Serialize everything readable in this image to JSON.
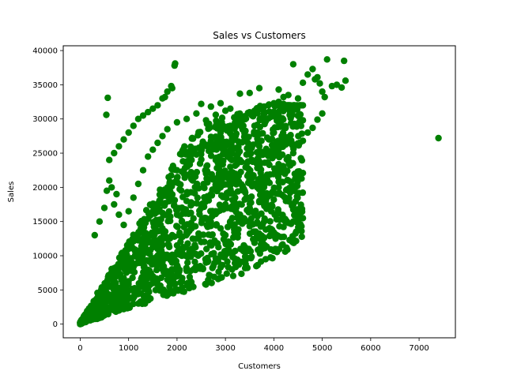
{
  "chart_data": {
    "type": "scatter",
    "title": "Sales vs Customers",
    "xlabel": "Customers",
    "ylabel": "Sales",
    "xlim": [
      -350,
      7750
    ],
    "ylim": [
      -2000,
      40700
    ],
    "xticks": [
      0,
      1000,
      2000,
      3000,
      4000,
      5000,
      6000,
      7000
    ],
    "yticks": [
      0,
      5000,
      10000,
      15000,
      20000,
      25000,
      30000,
      35000,
      40000
    ],
    "grid": false,
    "legend": "none",
    "marker_color": "#008000",
    "series": [
      {
        "points": [
          [
            0,
            0
          ],
          [
            20,
            150
          ],
          [
            50,
            400
          ],
          [
            80,
            700
          ],
          [
            120,
            1100
          ],
          [
            150,
            1500
          ],
          [
            200,
            2000
          ],
          [
            250,
            2600
          ],
          [
            300,
            3200
          ],
          [
            350,
            3800
          ],
          [
            400,
            4300
          ],
          [
            450,
            5000
          ],
          [
            500,
            5500
          ],
          [
            550,
            6000
          ],
          [
            600,
            6600
          ],
          [
            650,
            7200
          ],
          [
            700,
            7700
          ],
          [
            750,
            8200
          ],
          [
            800,
            8800
          ],
          [
            850,
            9300
          ],
          [
            900,
            9800
          ],
          [
            950,
            10400
          ],
          [
            1000,
            11000
          ],
          [
            1050,
            11500
          ],
          [
            1100,
            12100
          ],
          [
            1150,
            12600
          ],
          [
            1200,
            13200
          ],
          [
            1250,
            13700
          ],
          [
            1300,
            14300
          ],
          [
            1350,
            14800
          ],
          [
            1400,
            15400
          ],
          [
            1450,
            15900
          ],
          [
            1500,
            16500
          ],
          [
            1550,
            17000
          ],
          [
            1600,
            17600
          ],
          [
            1650,
            18100
          ],
          [
            1700,
            18700
          ],
          [
            1800,
            19600
          ],
          [
            1900,
            20500
          ],
          [
            2000,
            21400
          ],
          [
            2100,
            22300
          ],
          [
            2200,
            23200
          ],
          [
            2300,
            24000
          ],
          [
            2400,
            24800
          ],
          [
            2500,
            25500
          ],
          [
            2600,
            26200
          ],
          [
            2700,
            26800
          ],
          [
            2800,
            27400
          ],
          [
            2900,
            28000
          ],
          [
            3000,
            28500
          ],
          [
            3100,
            29000
          ],
          [
            3200,
            29500
          ],
          [
            3300,
            30000
          ],
          [
            3400,
            30400
          ],
          [
            3500,
            30800
          ],
          [
            3600,
            31200
          ],
          [
            3700,
            31500
          ],
          [
            3800,
            31800
          ],
          [
            3900,
            32100
          ],
          [
            4000,
            32300
          ],
          [
            4100,
            32500
          ],
          [
            4200,
            32200
          ],
          [
            4300,
            31800
          ],
          [
            4400,
            31300
          ],
          [
            4500,
            30500
          ],
          [
            4600,
            29800
          ],
          [
            250,
            900
          ],
          [
            400,
            1500
          ],
          [
            600,
            2300
          ],
          [
            800,
            3000
          ],
          [
            1000,
            3700
          ],
          [
            1200,
            4400
          ],
          [
            1400,
            5100
          ],
          [
            1600,
            5800
          ],
          [
            1800,
            6500
          ],
          [
            2000,
            7200
          ],
          [
            2200,
            7800
          ],
          [
            2400,
            8400
          ],
          [
            2600,
            9000
          ],
          [
            2800,
            9600
          ],
          [
            3000,
            10200
          ],
          [
            3200,
            10700
          ],
          [
            3400,
            11300
          ],
          [
            3600,
            11900
          ],
          [
            3800,
            12600
          ],
          [
            4000,
            13400
          ],
          [
            4200,
            14200
          ],
          [
            4400,
            15000
          ],
          [
            4600,
            15500
          ],
          [
            100,
            300
          ],
          [
            300,
            1100
          ],
          [
            500,
            2000
          ],
          [
            700,
            2800
          ],
          [
            900,
            3800
          ],
          [
            1100,
            4900
          ],
          [
            1300,
            6000
          ],
          [
            1500,
            7000
          ],
          [
            1700,
            8000
          ],
          [
            1900,
            9000
          ],
          [
            2100,
            10000
          ],
          [
            2300,
            11000
          ],
          [
            2500,
            12000
          ],
          [
            2700,
            13000
          ],
          [
            2900,
            14000
          ],
          [
            3100,
            15000
          ],
          [
            3300,
            16000
          ],
          [
            3500,
            17000
          ],
          [
            3700,
            18000
          ],
          [
            3900,
            19000
          ],
          [
            4100,
            20000
          ],
          [
            4300,
            21000
          ],
          [
            4500,
            22000
          ],
          [
            600,
            24000
          ],
          [
            700,
            25000
          ],
          [
            800,
            26000
          ],
          [
            900,
            27000
          ],
          [
            1000,
            28000
          ],
          [
            1100,
            29000
          ],
          [
            1200,
            30000
          ],
          [
            1300,
            30500
          ],
          [
            1400,
            31000
          ],
          [
            1500,
            31500
          ],
          [
            1600,
            32000
          ],
          [
            1700,
            33000
          ],
          [
            1800,
            34000
          ],
          [
            1900,
            34500
          ],
          [
            1950,
            37800
          ],
          [
            1960,
            38100
          ],
          [
            1880,
            34800
          ],
          [
            1750,
            33200
          ],
          [
            570,
            33100
          ],
          [
            540,
            30600
          ],
          [
            2500,
            32200
          ],
          [
            2700,
            31800
          ],
          [
            2900,
            32300
          ],
          [
            3100,
            31500
          ],
          [
            3300,
            33700
          ],
          [
            3500,
            33800
          ],
          [
            3700,
            34500
          ],
          [
            4100,
            34300
          ],
          [
            4200,
            33200
          ],
          [
            4300,
            33500
          ],
          [
            4400,
            38000
          ],
          [
            4500,
            33000
          ],
          [
            4600,
            35300
          ],
          [
            4700,
            36500
          ],
          [
            4800,
            37300
          ],
          [
            4850,
            35800
          ],
          [
            4900,
            36100
          ],
          [
            4950,
            35200
          ],
          [
            5000,
            34000
          ],
          [
            5050,
            33200
          ],
          [
            5100,
            38700
          ],
          [
            5200,
            34800
          ],
          [
            5300,
            35000
          ],
          [
            5400,
            34600
          ],
          [
            5450,
            38500
          ],
          [
            5480,
            35600
          ],
          [
            5000,
            30800
          ],
          [
            4900,
            29900
          ],
          [
            4800,
            28700
          ],
          [
            4700,
            28000
          ],
          [
            4600,
            26800
          ],
          [
            4400,
            25000
          ],
          [
            4300,
            24400
          ],
          [
            4200,
            23000
          ],
          [
            4100,
            20800
          ],
          [
            4000,
            19200
          ],
          [
            4100,
            16200
          ],
          [
            4300,
            14800
          ],
          [
            4500,
            15200
          ],
          [
            4550,
            14600
          ],
          [
            4600,
            22100
          ],
          [
            4250,
            18000
          ],
          [
            3800,
            17500
          ],
          [
            300,
            13000
          ],
          [
            400,
            15000
          ],
          [
            500,
            17000
          ],
          [
            550,
            19500
          ],
          [
            600,
            21000
          ],
          [
            650,
            20000
          ],
          [
            700,
            17500
          ],
          [
            750,
            19000
          ],
          [
            800,
            16000
          ],
          [
            900,
            14500
          ],
          [
            1000,
            16500
          ],
          [
            1100,
            18500
          ],
          [
            1200,
            20500
          ],
          [
            1300,
            22500
          ],
          [
            1400,
            24500
          ],
          [
            1500,
            25500
          ],
          [
            1600,
            26500
          ],
          [
            1700,
            27500
          ],
          [
            1800,
            28500
          ],
          [
            2000,
            29500
          ],
          [
            2200,
            30000
          ],
          [
            2400,
            30800
          ],
          [
            2600,
            29800
          ],
          [
            2800,
            30600
          ],
          [
            3000,
            31200
          ],
          [
            3200,
            30200
          ],
          [
            2000,
            16000
          ],
          [
            2200,
            18000
          ],
          [
            2400,
            20000
          ],
          [
            2600,
            22000
          ],
          [
            2800,
            24000
          ],
          [
            3000,
            26000
          ],
          [
            3200,
            27000
          ],
          [
            3400,
            28000
          ],
          [
            3600,
            29000
          ],
          [
            3800,
            30000
          ],
          [
            1500,
            12000
          ],
          [
            1700,
            14000
          ],
          [
            1900,
            13000
          ],
          [
            2100,
            15000
          ],
          [
            2300,
            14000
          ],
          [
            2500,
            17000
          ],
          [
            2700,
            19000
          ],
          [
            2900,
            21000
          ],
          [
            3100,
            23000
          ],
          [
            3300,
            24000
          ],
          [
            3500,
            25000
          ],
          [
            3700,
            26000
          ],
          [
            3900,
            27000
          ],
          [
            4000,
            28000
          ],
          [
            1200,
            9000
          ],
          [
            1400,
            10500
          ],
          [
            1600,
            11000
          ],
          [
            1800,
            12500
          ],
          [
            2000,
            11500
          ],
          [
            2200,
            13500
          ],
          [
            2400,
            12500
          ],
          [
            2600,
            15500
          ],
          [
            2800,
            16500
          ],
          [
            3000,
            17500
          ],
          [
            3200,
            18500
          ],
          [
            3400,
            19500
          ],
          [
            3600,
            20500
          ],
          [
            3800,
            21500
          ],
          [
            3000,
            13000
          ],
          [
            3200,
            14000
          ],
          [
            3400,
            15000
          ],
          [
            3600,
            16000
          ],
          [
            3800,
            15000
          ],
          [
            3900,
            17000
          ],
          [
            7400,
            27200
          ]
        ]
      }
    ]
  }
}
